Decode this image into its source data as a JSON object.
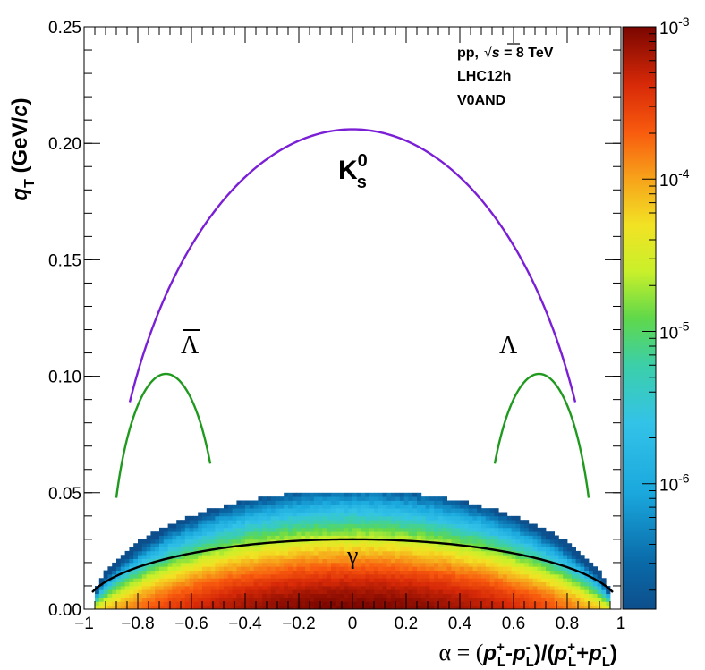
{
  "chart_data": {
    "type": "heatmap",
    "xlabel": {
      "pre": "α = (",
      "p": "p",
      "sup_plus": "+",
      "sub_L": "L",
      "minus": "-",
      "sup_minus": "-",
      "mid": ")/(",
      "plus": "+",
      "post": ")"
    },
    "ylabel": {
      "q": "q",
      "sub": "T",
      "rest": " (GeV/",
      "c": "c",
      "close": ")"
    },
    "xlim": [
      -1,
      1
    ],
    "ylim": [
      0,
      0.25
    ],
    "x_ticks": [
      "−1",
      "−0.8",
      "−0.6",
      "−0.4",
      "−0.2",
      "0",
      "0.2",
      "0.4",
      "0.6",
      "0.8",
      "1"
    ],
    "y_ticks": [
      "0.00",
      "0.05",
      "0.10",
      "0.15",
      "0.20",
      "0.25"
    ],
    "colorbar": {
      "scale": "log",
      "zlim": [
        1.5e-07,
        0.001
      ],
      "labels": [
        {
          "base": "10",
          "exp": "-3",
          "value": 0.001
        },
        {
          "base": "10",
          "exp": "-4",
          "value": 0.0001
        },
        {
          "base": "10",
          "exp": "-5",
          "value": 1e-05
        },
        {
          "base": "10",
          "exp": "-6",
          "value": 1e-06
        }
      ]
    },
    "annotations": {
      "line1_pre": "pp,",
      "line1_sqrt": "√",
      "line1_s": "s",
      "line1_post": " = 8 TeV",
      "line2": "LHC12h",
      "line3": "V0AND"
    },
    "curves": [
      {
        "name": "K",
        "sup": "0",
        "sub": "s",
        "color": "#7a1fd6",
        "x_range": [
          -0.83,
          0.83
        ],
        "peak_qt": 0.206
      },
      {
        "name": "Λ",
        "color": "#1f9a1f",
        "x_range": [
          0.53,
          0.88
        ],
        "center": 0.695,
        "peak_qt": 0.101
      },
      {
        "name": "Λ̄",
        "color": "#1f9a1f",
        "x_range": [
          -0.88,
          -0.53
        ],
        "center": -0.695,
        "peak_qt": 0.101
      },
      {
        "name": "γ",
        "color": "#000000",
        "x_range": [
          -0.97,
          0.97
        ],
        "peak_qt": 0.03
      }
    ],
    "labels": {
      "kshort": "K",
      "kshort_sup": "0",
      "kshort_sub": "s",
      "lambda": "Λ",
      "antilambda": "Λ",
      "gamma": "γ"
    },
    "density_model": {
      "description_hidden": false,
      "max_alpha": 0.96,
      "max_qt": 0.05,
      "peak": 0.001
    }
  }
}
